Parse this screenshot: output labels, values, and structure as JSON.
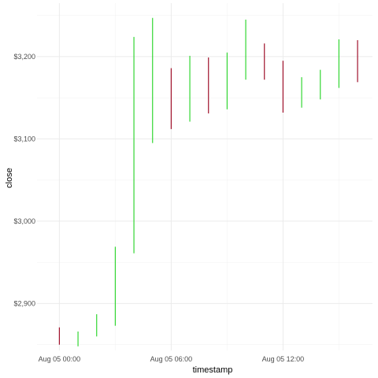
{
  "chart_data": {
    "type": "ohlc",
    "x_label": "timestamp",
    "y_label": "close",
    "x_ticks": [
      "Aug 05 00:00",
      "Aug 05 06:00",
      "Aug 05 12:00"
    ],
    "x_tick_hours": [
      0,
      6,
      12
    ],
    "y_ticks": [
      "$2,900",
      "$3,000",
      "$3,100",
      "$3,200"
    ],
    "y_tick_values": [
      2900,
      3000,
      3100,
      3200
    ],
    "x_range_hours": [
      -1.2,
      16.8
    ],
    "y_range": [
      2843,
      3265
    ],
    "grid": true,
    "colors": {
      "up": "#33d633",
      "down": "#a0112b",
      "grid": "#ebebeb"
    },
    "bars": [
      {
        "hour": 0,
        "low": 2850,
        "high": 2871,
        "direction": "down"
      },
      {
        "hour": 1,
        "low": 2848,
        "high": 2866,
        "direction": "up"
      },
      {
        "hour": 2,
        "low": 2860,
        "high": 2887,
        "direction": "up"
      },
      {
        "hour": 3,
        "low": 2873,
        "high": 2969,
        "direction": "up"
      },
      {
        "hour": 4,
        "low": 2961,
        "high": 3224,
        "direction": "up"
      },
      {
        "hour": 5,
        "low": 3095,
        "high": 3247,
        "direction": "up"
      },
      {
        "hour": 6,
        "low": 3112,
        "high": 3186,
        "direction": "down"
      },
      {
        "hour": 7,
        "low": 3121,
        "high": 3201,
        "direction": "up"
      },
      {
        "hour": 8,
        "low": 3131,
        "high": 3199,
        "direction": "down"
      },
      {
        "hour": 9,
        "low": 3136,
        "high": 3205,
        "direction": "up"
      },
      {
        "hour": 10,
        "low": 3172,
        "high": 3245,
        "direction": "up"
      },
      {
        "hour": 11,
        "low": 3172,
        "high": 3216,
        "direction": "down"
      },
      {
        "hour": 12,
        "low": 3132,
        "high": 3195,
        "direction": "down"
      },
      {
        "hour": 13,
        "low": 3138,
        "high": 3175,
        "direction": "up"
      },
      {
        "hour": 14,
        "low": 3148,
        "high": 3184,
        "direction": "up"
      },
      {
        "hour": 15,
        "low": 3162,
        "high": 3221,
        "direction": "up"
      },
      {
        "hour": 16,
        "low": 3169,
        "high": 3220,
        "direction": "down"
      }
    ]
  }
}
